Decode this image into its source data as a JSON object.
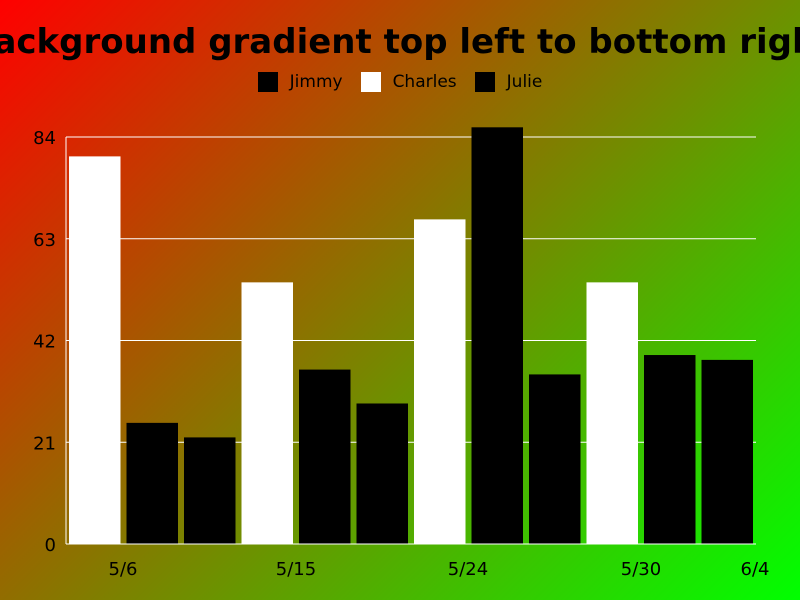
{
  "chart_data": {
    "type": "bar",
    "title": "Background gradient top left to bottom right",
    "categories": [
      "5/6",
      "5/15",
      "5/24",
      "5/30",
      "6/4"
    ],
    "ylim": [
      0,
      84
    ],
    "yticks": [
      0,
      21,
      42,
      63,
      84
    ],
    "grid": true,
    "legend_position": "top-center",
    "series": [
      {
        "name": "Jimmy",
        "color": "#000000"
      },
      {
        "name": "Charles",
        "color": "#ffffff"
      },
      {
        "name": "Julie",
        "color": "#000000"
      }
    ],
    "bars": [
      {
        "value": 80,
        "color": "#ffffff"
      },
      {
        "value": 25,
        "color": "#000000"
      },
      {
        "value": 22,
        "color": "#000000"
      },
      {
        "value": 54,
        "color": "#ffffff"
      },
      {
        "value": 36,
        "color": "#000000"
      },
      {
        "value": 29,
        "color": "#000000"
      },
      {
        "value": 67,
        "color": "#ffffff"
      },
      {
        "value": 86,
        "color": "#000000"
      },
      {
        "value": 35,
        "color": "#000000"
      },
      {
        "value": 54,
        "color": "#ffffff"
      },
      {
        "value": 39,
        "color": "#000000"
      },
      {
        "value": 38,
        "color": "#000000"
      }
    ]
  }
}
